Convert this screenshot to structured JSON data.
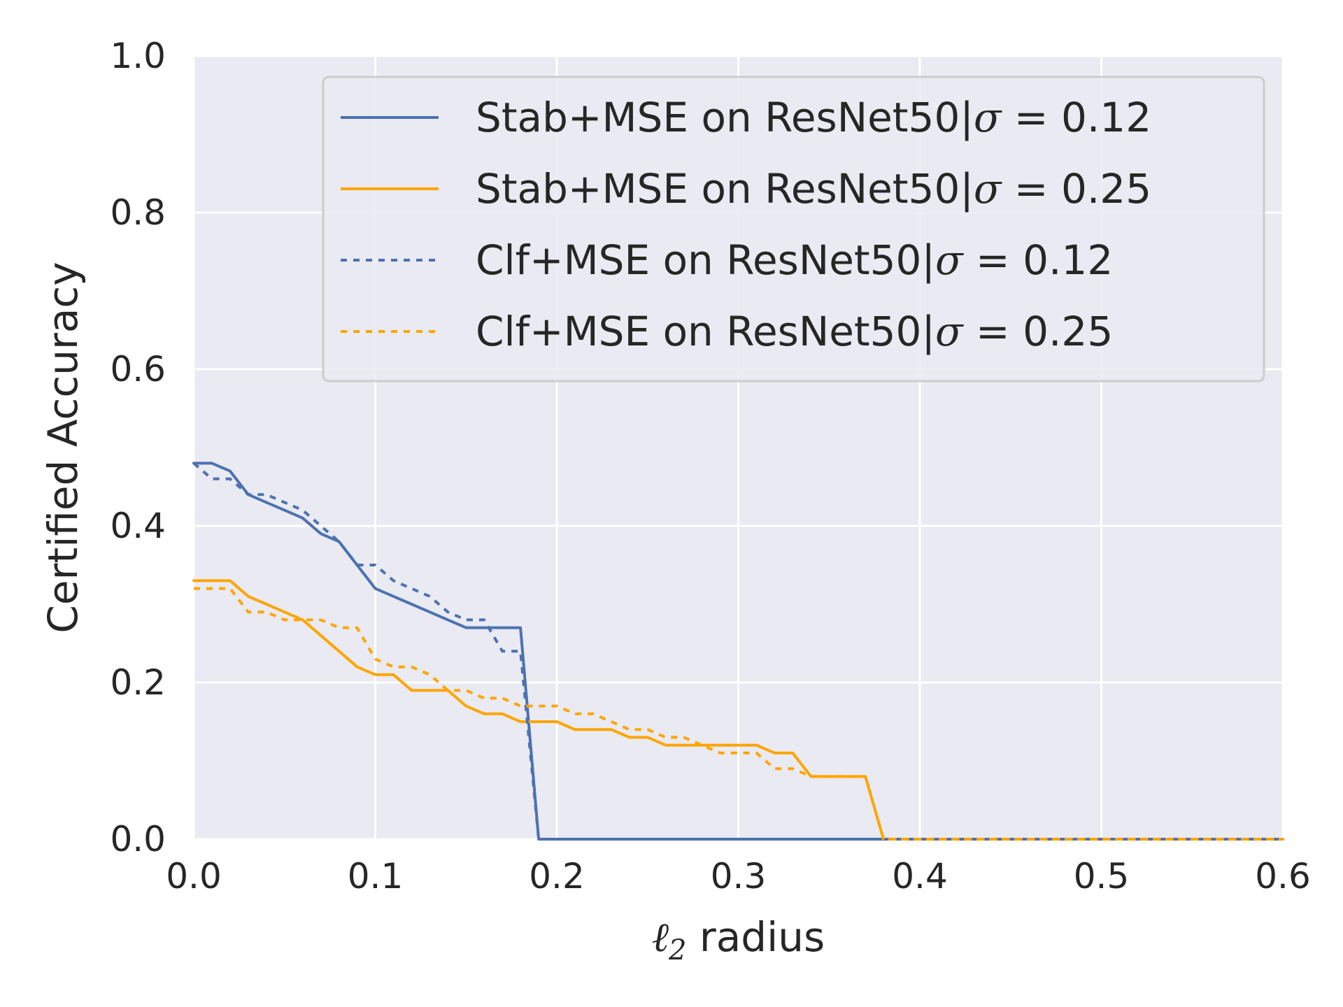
{
  "chart_data": {
    "type": "line",
    "title": "",
    "xlabel_symbol": "ℓ",
    "xlabel_subscript": "2",
    "xlabel_rest": " radius",
    "ylabel": "Certified Accuracy",
    "xlim": [
      0.0,
      0.6
    ],
    "ylim": [
      0.0,
      1.0
    ],
    "xticks": [
      "0.0",
      "0.1",
      "0.2",
      "0.3",
      "0.4",
      "0.5",
      "0.6"
    ],
    "yticks": [
      "0.0",
      "0.2",
      "0.4",
      "0.6",
      "0.8",
      "1.0"
    ],
    "grid": true,
    "legend_position": "top-right",
    "series": [
      {
        "legend_prefix": "Stab+MSE on ResNet50|",
        "legend_sigma": "σ",
        "legend_value": " = 0.12",
        "color": "#4c72b0",
        "dash": "solid",
        "x": [
          0.0,
          0.01,
          0.02,
          0.03,
          0.04,
          0.05,
          0.06,
          0.07,
          0.08,
          0.09,
          0.1,
          0.11,
          0.12,
          0.13,
          0.14,
          0.15,
          0.16,
          0.17,
          0.18,
          0.19,
          0.6
        ],
        "y": [
          0.48,
          0.48,
          0.47,
          0.44,
          0.43,
          0.42,
          0.41,
          0.39,
          0.38,
          0.35,
          0.32,
          0.31,
          0.3,
          0.29,
          0.28,
          0.27,
          0.27,
          0.27,
          0.27,
          0.0,
          0.0
        ]
      },
      {
        "legend_prefix": "Stab+MSE on ResNet50|",
        "legend_sigma": "σ",
        "legend_value": " = 0.25",
        "color": "#ffa500",
        "dash": "solid",
        "x": [
          0.0,
          0.01,
          0.02,
          0.03,
          0.04,
          0.05,
          0.06,
          0.07,
          0.08,
          0.09,
          0.1,
          0.11,
          0.12,
          0.13,
          0.14,
          0.15,
          0.16,
          0.17,
          0.18,
          0.19,
          0.2,
          0.21,
          0.22,
          0.23,
          0.24,
          0.25,
          0.26,
          0.27,
          0.28,
          0.29,
          0.3,
          0.31,
          0.32,
          0.33,
          0.34,
          0.35,
          0.36,
          0.37,
          0.38,
          0.6
        ],
        "y": [
          0.33,
          0.33,
          0.33,
          0.31,
          0.3,
          0.29,
          0.28,
          0.26,
          0.24,
          0.22,
          0.21,
          0.21,
          0.19,
          0.19,
          0.19,
          0.17,
          0.16,
          0.16,
          0.15,
          0.15,
          0.15,
          0.14,
          0.14,
          0.14,
          0.13,
          0.13,
          0.12,
          0.12,
          0.12,
          0.12,
          0.12,
          0.12,
          0.11,
          0.11,
          0.08,
          0.08,
          0.08,
          0.08,
          0.0,
          0.0
        ]
      },
      {
        "legend_prefix": "Clf+MSE on ResNet50|",
        "legend_sigma": "σ",
        "legend_value": " = 0.12",
        "color": "#4c72b0",
        "dash": "dotted",
        "x": [
          0.0,
          0.01,
          0.02,
          0.03,
          0.04,
          0.05,
          0.06,
          0.07,
          0.08,
          0.09,
          0.1,
          0.11,
          0.12,
          0.13,
          0.14,
          0.15,
          0.16,
          0.17,
          0.18,
          0.19,
          0.6
        ],
        "y": [
          0.48,
          0.46,
          0.46,
          0.44,
          0.44,
          0.43,
          0.42,
          0.4,
          0.38,
          0.35,
          0.35,
          0.33,
          0.32,
          0.31,
          0.29,
          0.28,
          0.28,
          0.24,
          0.24,
          0.0,
          0.0
        ]
      },
      {
        "legend_prefix": "Clf+MSE on ResNet50|",
        "legend_sigma": "σ",
        "legend_value": " = 0.25",
        "color": "#ffa500",
        "dash": "dotted",
        "x": [
          0.0,
          0.01,
          0.02,
          0.03,
          0.04,
          0.05,
          0.06,
          0.07,
          0.08,
          0.09,
          0.1,
          0.11,
          0.12,
          0.13,
          0.14,
          0.15,
          0.16,
          0.17,
          0.18,
          0.19,
          0.2,
          0.21,
          0.22,
          0.23,
          0.24,
          0.25,
          0.26,
          0.27,
          0.28,
          0.29,
          0.3,
          0.31,
          0.32,
          0.33,
          0.34,
          0.35,
          0.36,
          0.37,
          0.38,
          0.6
        ],
        "y": [
          0.32,
          0.32,
          0.32,
          0.29,
          0.29,
          0.28,
          0.28,
          0.28,
          0.27,
          0.27,
          0.23,
          0.22,
          0.22,
          0.21,
          0.19,
          0.19,
          0.18,
          0.18,
          0.17,
          0.17,
          0.17,
          0.16,
          0.16,
          0.15,
          0.14,
          0.14,
          0.13,
          0.13,
          0.12,
          0.11,
          0.11,
          0.11,
          0.09,
          0.09,
          0.08,
          0.08,
          0.08,
          0.08,
          0.0,
          0.0
        ]
      }
    ]
  }
}
